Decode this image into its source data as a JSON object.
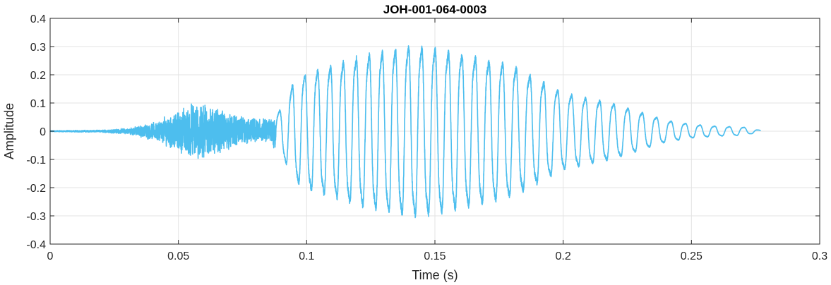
{
  "chart_data": {
    "type": "line",
    "title": "JOH-001-064-0003",
    "xlabel": "Time (s)",
    "ylabel": "Amplitude",
    "xlim": [
      0,
      0.3
    ],
    "ylim": [
      -0.4,
      0.4
    ],
    "x_ticks": [
      0,
      0.05,
      0.1,
      0.15,
      0.2,
      0.25,
      0.3
    ],
    "x_tick_labels": [
      "0",
      "0.05",
      "0.1",
      "0.15",
      "0.2",
      "0.25",
      "0.3"
    ],
    "y_ticks": [
      0.4,
      0.3,
      0.2,
      0.1,
      0,
      -0.1,
      -0.2,
      -0.3,
      -0.4
    ],
    "y_tick_labels": [
      "0.4",
      "0.3",
      "0.2",
      "0.1",
      "0",
      "-0.1",
      "-0.2",
      "-0.3",
      "-0.4"
    ],
    "grid": true,
    "series": [
      {
        "color": "#4DBEEE",
        "duration": 0.277,
        "envelope": [
          [
            0.0,
            0.002
          ],
          [
            0.02,
            0.004
          ],
          [
            0.03,
            0.01
          ],
          [
            0.04,
            0.03
          ],
          [
            0.05,
            0.07
          ],
          [
            0.055,
            0.1
          ],
          [
            0.06,
            0.1
          ],
          [
            0.065,
            0.08
          ],
          [
            0.075,
            0.05
          ],
          [
            0.085,
            0.04
          ],
          [
            0.09,
            0.08
          ],
          [
            0.095,
            0.18
          ],
          [
            0.1,
            0.21
          ],
          [
            0.11,
            0.24
          ],
          [
            0.12,
            0.27
          ],
          [
            0.13,
            0.29
          ],
          [
            0.14,
            0.31
          ],
          [
            0.15,
            0.3
          ],
          [
            0.16,
            0.28
          ],
          [
            0.17,
            0.26
          ],
          [
            0.18,
            0.24
          ],
          [
            0.19,
            0.19
          ],
          [
            0.2,
            0.14
          ],
          [
            0.21,
            0.12
          ],
          [
            0.22,
            0.1
          ],
          [
            0.23,
            0.07
          ],
          [
            0.24,
            0.04
          ],
          [
            0.25,
            0.025
          ],
          [
            0.26,
            0.018
          ],
          [
            0.27,
            0.015
          ],
          [
            0.277,
            0.003
          ]
        ],
        "voiced_onset": 0.088,
        "period_start": 0.0049,
        "period_end": 0.0058
      }
    ]
  }
}
